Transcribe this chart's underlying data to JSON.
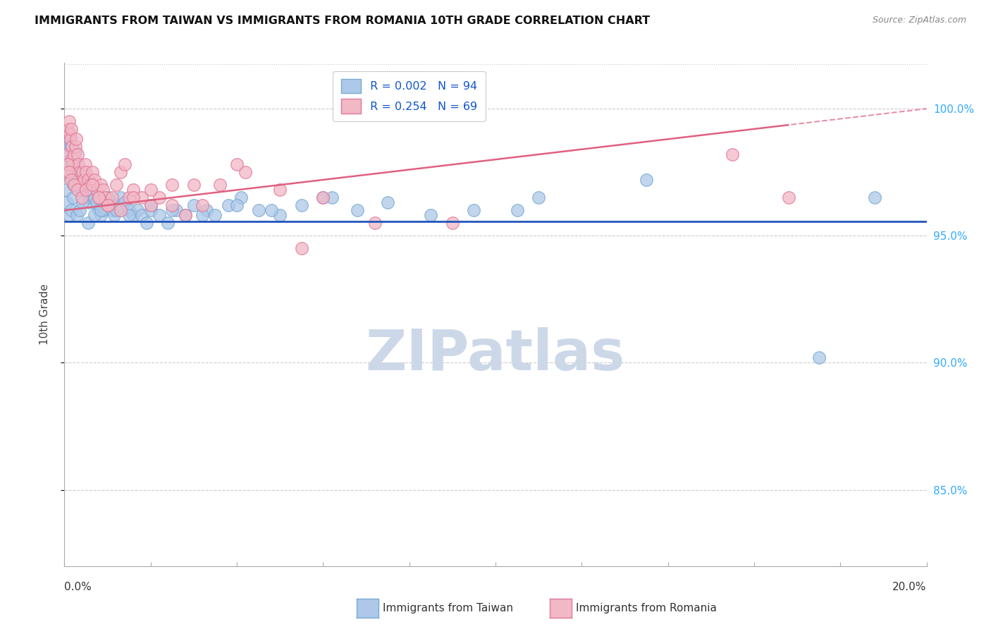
{
  "title": "IMMIGRANTS FROM TAIWAN VS IMMIGRANTS FROM ROMANIA 10TH GRADE CORRELATION CHART",
  "source": "Source: ZipAtlas.com",
  "ylabel": "10th Grade",
  "y_ticks": [
    85.0,
    90.0,
    95.0,
    100.0
  ],
  "y_tick_labels": [
    "85.0%",
    "90.0%",
    "95.0%",
    "100.0%"
  ],
  "x_min": 0.0,
  "x_max": 20.0,
  "y_min": 82.0,
  "y_max": 101.8,
  "taiwan_R": 0.002,
  "taiwan_N": 94,
  "romania_R": 0.254,
  "romania_N": 69,
  "taiwan_color": "#adc8e8",
  "taiwan_edge_color": "#7aaad4",
  "romania_color": "#f2b8c6",
  "romania_edge_color": "#e07898",
  "taiwan_line_color": "#2255bb",
  "romania_line_color": "#e06080",
  "legend_R_color": "#1155cc",
  "legend_N_color": "#ee4444",
  "background_color": "#ffffff",
  "watermark_color": "#ccd8e8",
  "grid_color": "#cccccc",
  "tw_line_y_intercept": 95.55,
  "tw_line_slope": 0.0,
  "ro_line_y_intercept": 96.0,
  "ro_line_slope": 0.2,
  "taiwan_x": [
    0.05,
    0.07,
    0.08,
    0.09,
    0.1,
    0.12,
    0.13,
    0.14,
    0.15,
    0.16,
    0.17,
    0.18,
    0.19,
    0.2,
    0.22,
    0.23,
    0.25,
    0.27,
    0.3,
    0.32,
    0.35,
    0.38,
    0.4,
    0.42,
    0.45,
    0.48,
    0.5,
    0.52,
    0.55,
    0.58,
    0.6,
    0.63,
    0.65,
    0.68,
    0.7,
    0.75,
    0.8,
    0.85,
    0.9,
    0.95,
    1.0,
    1.05,
    1.1,
    1.15,
    1.2,
    1.3,
    1.4,
    1.5,
    1.6,
    1.7,
    1.8,
    1.9,
    2.0,
    2.2,
    2.4,
    2.6,
    2.8,
    3.0,
    3.3,
    3.5,
    3.8,
    4.1,
    4.5,
    5.0,
    5.5,
    6.0,
    6.8,
    7.5,
    8.5,
    9.5,
    11.0,
    13.5,
    0.06,
    0.11,
    0.15,
    0.2,
    0.28,
    0.35,
    0.42,
    0.55,
    0.7,
    0.85,
    1.0,
    1.2,
    1.5,
    2.0,
    2.5,
    3.2,
    4.0,
    4.8,
    6.2,
    17.5,
    18.8,
    10.5
  ],
  "taiwan_y": [
    96.8,
    97.5,
    98.2,
    97.8,
    97.5,
    98.5,
    99.0,
    98.8,
    98.5,
    98.0,
    97.8,
    97.5,
    97.2,
    97.0,
    97.5,
    98.0,
    98.3,
    97.8,
    97.5,
    97.2,
    97.0,
    96.8,
    97.0,
    97.3,
    97.5,
    97.2,
    97.0,
    96.8,
    96.5,
    96.3,
    96.5,
    96.8,
    97.0,
    96.8,
    96.5,
    96.3,
    96.0,
    95.8,
    96.0,
    96.3,
    96.5,
    96.2,
    96.0,
    95.8,
    96.2,
    96.5,
    96.3,
    96.0,
    95.8,
    96.0,
    95.8,
    95.5,
    96.0,
    95.8,
    95.5,
    96.0,
    95.8,
    96.2,
    96.0,
    95.8,
    96.2,
    96.5,
    96.0,
    95.8,
    96.2,
    96.5,
    96.0,
    96.3,
    95.8,
    96.0,
    96.5,
    97.2,
    96.3,
    95.8,
    96.0,
    96.5,
    95.8,
    96.0,
    96.3,
    95.5,
    95.8,
    96.0,
    96.5,
    96.0,
    95.8,
    96.2,
    96.0,
    95.8,
    96.2,
    96.0,
    96.5,
    90.2,
    96.5,
    96.0
  ],
  "romania_x": [
    0.04,
    0.06,
    0.08,
    0.1,
    0.12,
    0.14,
    0.15,
    0.17,
    0.18,
    0.2,
    0.22,
    0.25,
    0.27,
    0.3,
    0.32,
    0.35,
    0.38,
    0.4,
    0.42,
    0.45,
    0.48,
    0.5,
    0.55,
    0.6,
    0.65,
    0.7,
    0.75,
    0.8,
    0.85,
    0.9,
    0.95,
    1.0,
    1.1,
    1.2,
    1.3,
    1.4,
    1.5,
    1.6,
    1.8,
    2.0,
    2.2,
    2.5,
    2.8,
    3.2,
    3.6,
    4.2,
    5.0,
    6.0,
    0.07,
    0.11,
    0.16,
    0.22,
    0.3,
    0.4,
    0.5,
    0.65,
    0.8,
    1.0,
    1.3,
    1.6,
    2.0,
    2.5,
    3.0,
    4.0,
    5.5,
    9.0,
    15.5,
    16.8,
    7.2
  ],
  "romania_y": [
    97.5,
    98.2,
    99.2,
    99.5,
    99.0,
    98.8,
    99.2,
    98.5,
    98.0,
    97.8,
    98.2,
    98.5,
    98.8,
    98.2,
    97.8,
    97.5,
    97.2,
    97.0,
    97.5,
    97.2,
    97.8,
    97.5,
    97.2,
    97.0,
    97.5,
    97.2,
    96.8,
    96.5,
    97.0,
    96.8,
    96.5,
    96.2,
    96.5,
    97.0,
    97.5,
    97.8,
    96.5,
    96.8,
    96.5,
    96.2,
    96.5,
    97.0,
    95.8,
    96.2,
    97.0,
    97.5,
    96.8,
    96.5,
    97.8,
    97.5,
    97.2,
    97.0,
    96.8,
    96.5,
    96.8,
    97.0,
    96.5,
    96.2,
    96.0,
    96.5,
    96.8,
    96.2,
    97.0,
    97.8,
    94.5,
    95.5,
    98.2,
    96.5,
    95.5
  ]
}
